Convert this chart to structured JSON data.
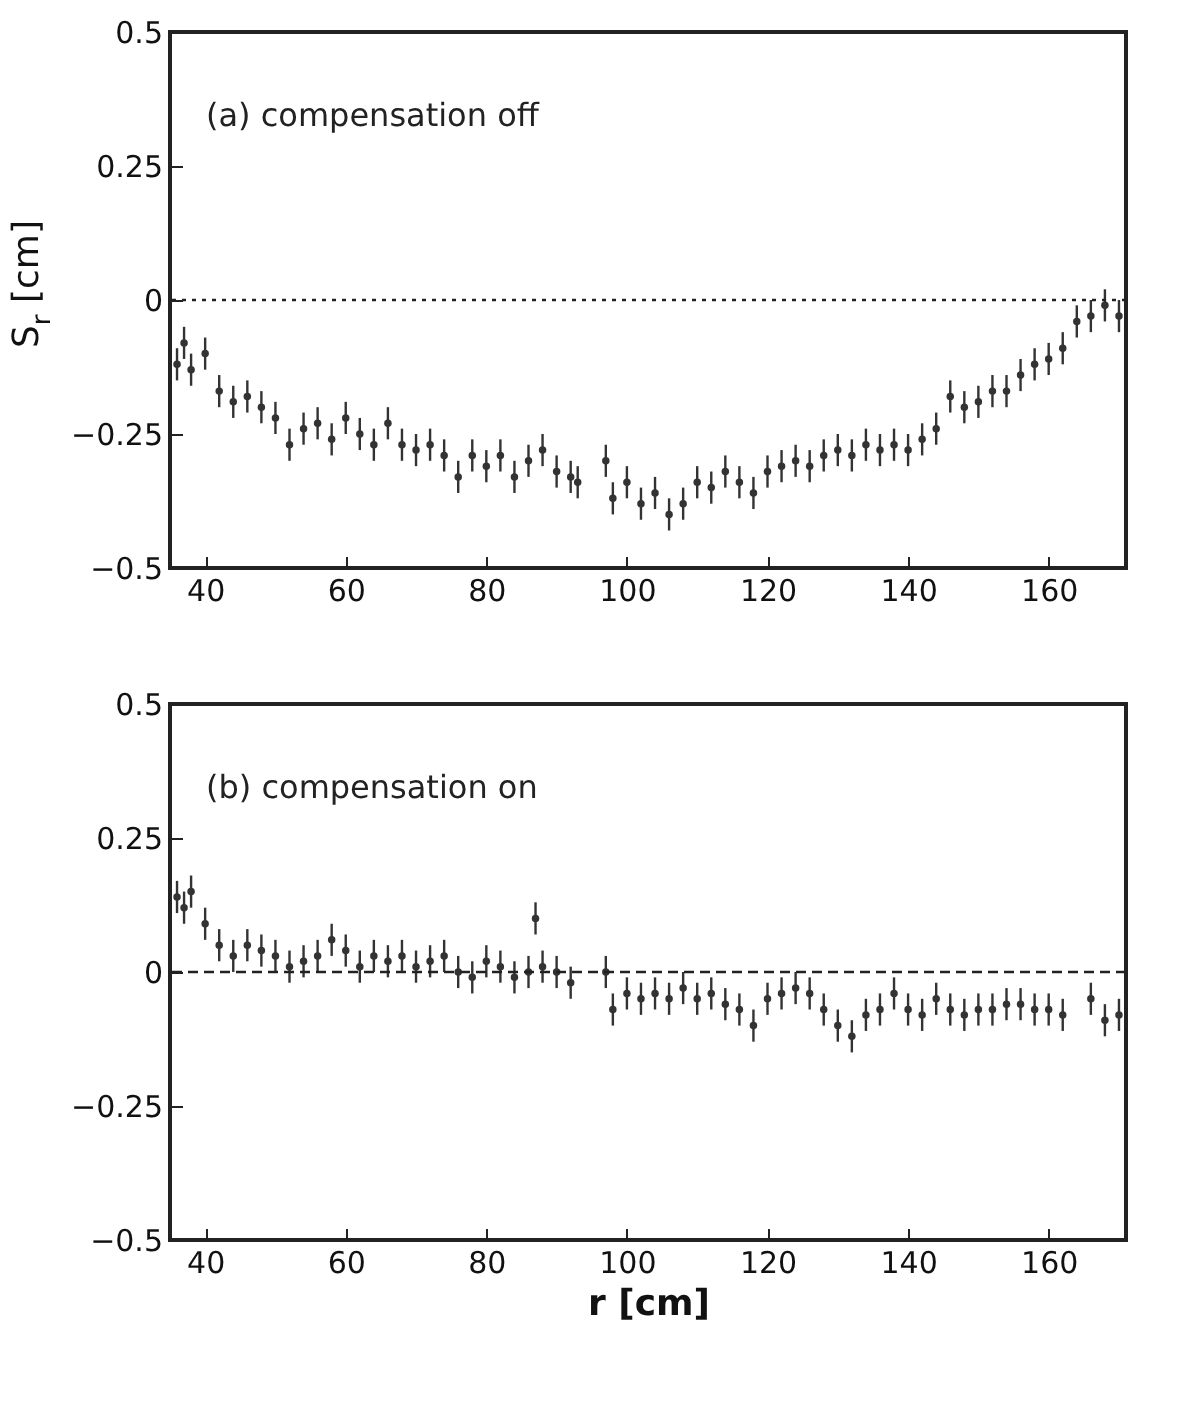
{
  "chart_data": [
    {
      "type": "scatter",
      "ylabel": "S$_{r}$ [cm]",
      "annotations": [
        "(a)   compensation off"
      ],
      "xlim": [
        35,
        171
      ],
      "xticks": [
        40,
        60,
        80,
        100,
        120,
        140,
        160
      ],
      "ylim": [
        -0.5,
        0.5
      ],
      "yticks": [
        -0.5,
        -0.25,
        0,
        0.25,
        0.5
      ],
      "ref_lines": [
        {
          "axis": "y",
          "value": 0,
          "line_style": "dotted"
        }
      ],
      "series": [
        {
          "color": "#333333",
          "x": [
            36,
            37,
            38,
            40,
            42,
            44,
            46,
            48,
            50,
            52,
            54,
            56,
            58,
            60,
            62,
            64,
            66,
            68,
            70,
            72,
            74,
            76,
            78,
            80,
            82,
            84,
            86,
            88,
            90,
            92,
            93,
            97,
            98,
            100,
            102,
            104,
            106,
            108,
            110,
            112,
            114,
            116,
            118,
            120,
            122,
            124,
            126,
            128,
            130,
            132,
            134,
            136,
            138,
            140,
            142,
            144,
            146,
            148,
            150,
            152,
            154,
            156,
            158,
            160,
            162,
            164,
            166,
            168,
            170
          ],
          "values": [
            -0.12,
            -0.08,
            -0.13,
            -0.1,
            -0.17,
            -0.19,
            -0.18,
            -0.2,
            -0.22,
            -0.27,
            -0.24,
            -0.23,
            -0.26,
            -0.22,
            -0.25,
            -0.27,
            -0.23,
            -0.27,
            -0.28,
            -0.27,
            -0.29,
            -0.33,
            -0.29,
            -0.31,
            -0.29,
            -0.33,
            -0.3,
            -0.28,
            -0.32,
            -0.33,
            -0.34,
            -0.3,
            -0.37,
            -0.34,
            -0.38,
            -0.36,
            -0.4,
            -0.38,
            -0.34,
            -0.35,
            -0.32,
            -0.34,
            -0.36,
            -0.32,
            -0.31,
            -0.3,
            -0.31,
            -0.29,
            -0.28,
            -0.29,
            -0.27,
            -0.28,
            -0.27,
            -0.28,
            -0.26,
            -0.24,
            -0.18,
            -0.2,
            -0.19,
            -0.17,
            -0.17,
            -0.14,
            -0.12,
            -0.11,
            -0.09,
            -0.04,
            -0.03,
            -0.01,
            -0.03
          ],
          "errors": [
            0.03,
            0.03,
            0.03,
            0.03,
            0.03,
            0.03,
            0.03,
            0.03,
            0.03,
            0.03,
            0.03,
            0.03,
            0.03,
            0.03,
            0.03,
            0.03,
            0.03,
            0.03,
            0.03,
            0.03,
            0.03,
            0.03,
            0.03,
            0.03,
            0.03,
            0.03,
            0.03,
            0.03,
            0.03,
            0.03,
            0.03,
            0.03,
            0.03,
            0.03,
            0.03,
            0.03,
            0.03,
            0.03,
            0.03,
            0.03,
            0.03,
            0.03,
            0.03,
            0.03,
            0.03,
            0.03,
            0.03,
            0.03,
            0.03,
            0.03,
            0.03,
            0.03,
            0.03,
            0.03,
            0.03,
            0.03,
            0.03,
            0.03,
            0.03,
            0.03,
            0.03,
            0.03,
            0.03,
            0.03,
            0.03,
            0.03,
            0.03,
            0.03,
            0.03
          ]
        }
      ]
    },
    {
      "type": "scatter",
      "xlabel": "r [cm]",
      "annotations": [
        "(b)   compensation on"
      ],
      "xlim": [
        35,
        171
      ],
      "xticks": [
        40,
        60,
        80,
        100,
        120,
        140,
        160
      ],
      "ylim": [
        -0.5,
        0.5
      ],
      "yticks": [
        -0.5,
        -0.25,
        0,
        0.25,
        0.5
      ],
      "ref_lines": [
        {
          "axis": "y",
          "value": 0,
          "line_style": "dashed"
        }
      ],
      "series": [
        {
          "color": "#333333",
          "x": [
            36,
            37,
            38,
            40,
            42,
            44,
            46,
            48,
            50,
            52,
            54,
            56,
            58,
            60,
            62,
            64,
            66,
            68,
            70,
            72,
            74,
            76,
            78,
            80,
            82,
            84,
            86,
            87,
            88,
            90,
            92,
            97,
            98,
            100,
            102,
            104,
            106,
            108,
            110,
            112,
            114,
            116,
            118,
            120,
            122,
            124,
            126,
            128,
            130,
            132,
            134,
            136,
            138,
            140,
            142,
            144,
            146,
            148,
            150,
            152,
            154,
            156,
            158,
            160,
            162,
            166,
            168,
            170
          ],
          "values": [
            0.14,
            0.12,
            0.15,
            0.09,
            0.05,
            0.03,
            0.05,
            0.04,
            0.03,
            0.01,
            0.02,
            0.03,
            0.06,
            0.04,
            0.01,
            0.03,
            0.02,
            0.03,
            0.01,
            0.02,
            0.03,
            0.0,
            -0.01,
            0.02,
            0.01,
            -0.01,
            0.0,
            0.1,
            0.01,
            0.0,
            -0.02,
            0.0,
            -0.07,
            -0.04,
            -0.05,
            -0.04,
            -0.05,
            -0.03,
            -0.05,
            -0.04,
            -0.06,
            -0.07,
            -0.1,
            -0.05,
            -0.04,
            -0.03,
            -0.04,
            -0.07,
            -0.1,
            -0.12,
            -0.08,
            -0.07,
            -0.04,
            -0.07,
            -0.08,
            -0.05,
            -0.07,
            -0.08,
            -0.07,
            -0.07,
            -0.06,
            -0.06,
            -0.07,
            -0.07,
            -0.08,
            -0.05,
            -0.09,
            -0.08
          ],
          "errors": [
            0.03,
            0.03,
            0.03,
            0.03,
            0.03,
            0.03,
            0.03,
            0.03,
            0.03,
            0.03,
            0.03,
            0.03,
            0.03,
            0.03,
            0.03,
            0.03,
            0.03,
            0.03,
            0.03,
            0.03,
            0.03,
            0.03,
            0.03,
            0.03,
            0.03,
            0.03,
            0.03,
            0.03,
            0.03,
            0.03,
            0.03,
            0.03,
            0.03,
            0.03,
            0.03,
            0.03,
            0.03,
            0.03,
            0.03,
            0.03,
            0.03,
            0.03,
            0.03,
            0.03,
            0.03,
            0.03,
            0.03,
            0.03,
            0.03,
            0.03,
            0.03,
            0.03,
            0.03,
            0.03,
            0.03,
            0.03,
            0.03,
            0.03,
            0.03,
            0.03,
            0.03,
            0.03,
            0.03,
            0.03,
            0.03,
            0.03,
            0.03,
            0.03
          ]
        }
      ]
    }
  ]
}
